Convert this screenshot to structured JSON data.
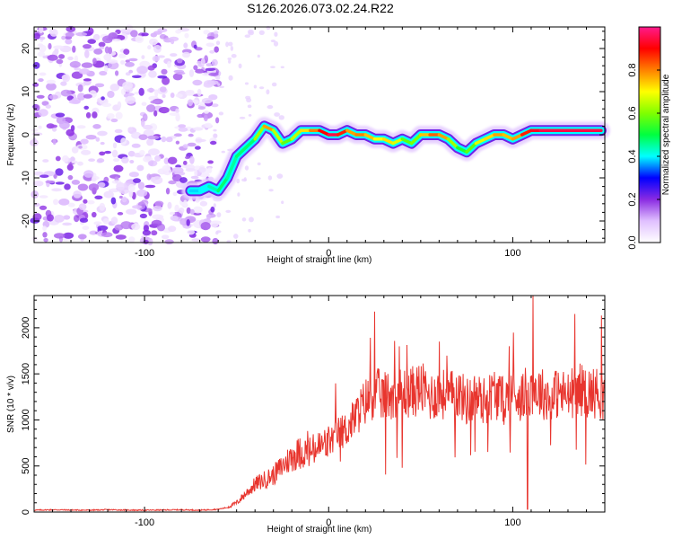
{
  "title": "S126.2026.073.02.24.R22",
  "chart_data": [
    {
      "type": "heatmap",
      "name": "spectrogram",
      "xlabel": "Height of straight line (km)",
      "ylabel": "Frequency (Hz)",
      "xlim": [
        -160,
        150
      ],
      "ylim": [
        -25,
        25
      ],
      "xticks": [
        -100,
        0,
        100
      ],
      "yticks": [
        -20,
        -10,
        0,
        10,
        20
      ],
      "noise_region_x": [
        -160,
        -60
      ],
      "ridge": {
        "x": [
          -75,
          -70,
          -65,
          -60,
          -55,
          -50,
          -45,
          -40,
          -35,
          -30,
          -25,
          -20,
          -15,
          -10,
          -5,
          0,
          5,
          10,
          15,
          20,
          25,
          30,
          35,
          40,
          45,
          50,
          55,
          60,
          65,
          70,
          75,
          80,
          85,
          90,
          95,
          100,
          105,
          110,
          115,
          120,
          125,
          130,
          135,
          140,
          145,
          148
        ],
        "y": [
          -13,
          -13,
          -12,
          -13,
          -10,
          -5,
          -3,
          -1,
          2,
          1,
          -2,
          -1,
          1,
          1,
          1,
          0,
          0,
          1,
          0,
          0,
          -1,
          -1,
          -2,
          -1,
          -2,
          0,
          0,
          0,
          -1,
          -3,
          -4,
          -2,
          -1,
          0,
          0,
          -1,
          0,
          1,
          1,
          1,
          1,
          1,
          1,
          1,
          1,
          1
        ],
        "amp": [
          0.35,
          0.42,
          0.38,
          0.5,
          0.45,
          0.45,
          0.5,
          0.45,
          0.8,
          0.75,
          0.55,
          0.6,
          0.7,
          0.75,
          0.85,
          0.95,
          0.95,
          0.8,
          0.75,
          0.85,
          0.65,
          0.75,
          0.7,
          0.65,
          0.5,
          0.7,
          0.8,
          0.85,
          0.7,
          0.55,
          0.5,
          0.65,
          0.7,
          0.75,
          0.8,
          0.7,
          0.85,
          0.9,
          0.95,
          0.95,
          0.95,
          0.95,
          0.95,
          0.95,
          0.95,
          0.95
        ]
      }
    },
    {
      "type": "bar",
      "name": "colorbar",
      "ylabel": "Normalized spectral amplitude",
      "ylim": [
        0,
        1
      ],
      "yticks": [
        0.0,
        0.2,
        0.4,
        0.6,
        0.8
      ],
      "tick_labels": [
        "0.0",
        "0.2",
        "0.4",
        "0.6",
        "0.8"
      ],
      "colormap": [
        "#ffffff",
        "#e0c0ff",
        "#8a2be2",
        "#0000ff",
        "#00ffff",
        "#00ff40",
        "#80ff00",
        "#ffff00",
        "#ff8000",
        "#ff0000",
        "#ff1a8c"
      ]
    },
    {
      "type": "line",
      "name": "snr",
      "xlabel": "Height of straight line (km)",
      "ylabel": "SNR (10 * v/v)",
      "xlim": [
        -160,
        150
      ],
      "ylim": [
        0,
        2350
      ],
      "xticks": [
        -100,
        0,
        100
      ],
      "yticks": [
        0,
        500,
        1000,
        1500,
        2000
      ],
      "series": [
        {
          "name": "SNR",
          "color": "#e8352e",
          "x": [
            -160,
            -150,
            -140,
            -130,
            -120,
            -110,
            -100,
            -90,
            -80,
            -70,
            -60,
            -55,
            -50,
            -45,
            -40,
            -35,
            -30,
            -25,
            -20,
            -15,
            -10,
            -5,
            0,
            5,
            10,
            15,
            20,
            25,
            30,
            35,
            40,
            45,
            50,
            55,
            60,
            65,
            70,
            75,
            80,
            85,
            90,
            95,
            100,
            105,
            110,
            115,
            120,
            125,
            130,
            135,
            140,
            145,
            150
          ],
          "y": [
            20,
            25,
            22,
            20,
            25,
            22,
            20,
            22,
            25,
            20,
            30,
            50,
            100,
            200,
            300,
            350,
            400,
            500,
            600,
            650,
            650,
            700,
            750,
            850,
            900,
            1050,
            1200,
            1300,
            1250,
            1300,
            1300,
            1300,
            1350,
            1250,
            1300,
            1250,
            1300,
            1200,
            1250,
            1200,
            1300,
            1200,
            1300,
            1250,
            1350,
            1300,
            1250,
            1300,
            1250,
            1350,
            1300,
            1300,
            1250
          ],
          "spikes": [
            {
              "x": 60,
              "y": 1850
            },
            {
              "x": 98,
              "y": 1800
            },
            {
              "x": 111,
              "y": 2350
            },
            {
              "x": 40,
              "y": 480
            },
            {
              "x": 108,
              "y": 30
            }
          ]
        }
      ]
    }
  ]
}
